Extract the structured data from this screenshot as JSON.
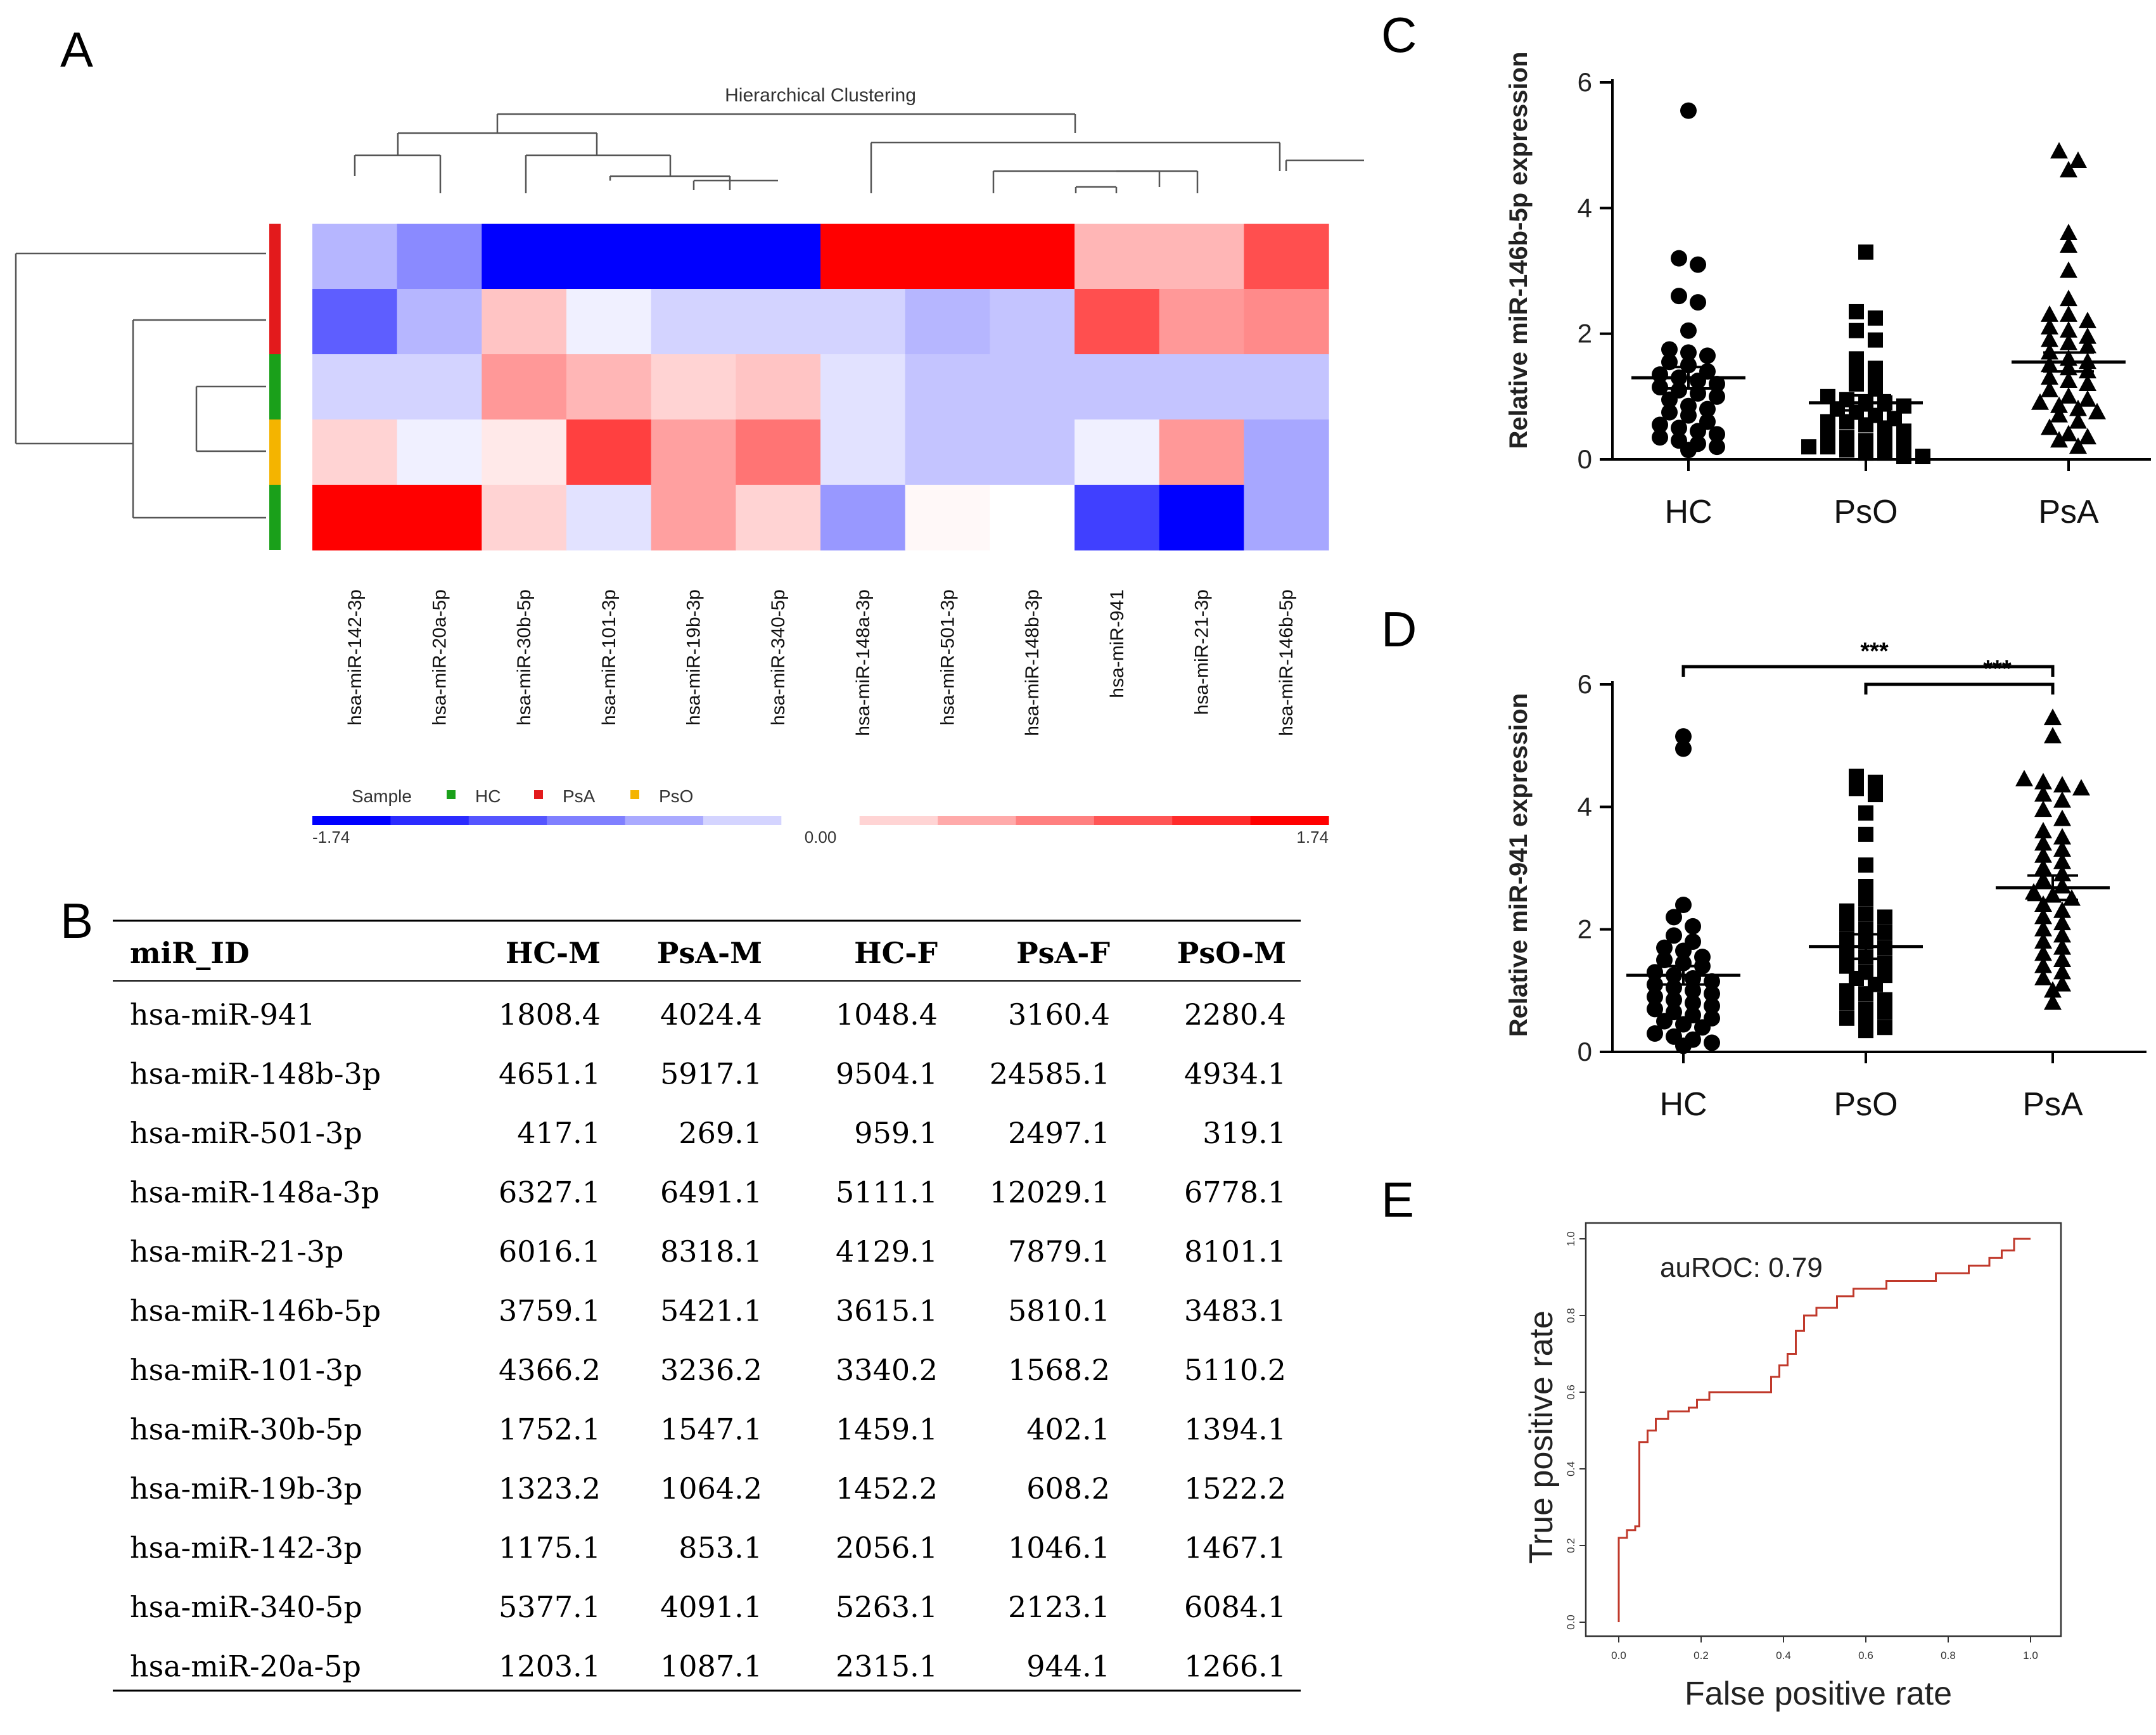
{
  "panel_labels": {
    "a": "A",
    "b": "B",
    "c": "C",
    "d": "D",
    "e": "E"
  },
  "colors": {
    "psa": "#e31a1c",
    "hc": "#1aa01a",
    "pso": "#f4b400",
    "heat_low": "#0000ff",
    "heat_mid": "#ffffff",
    "heat_high": "#ff0000",
    "roc": "#c0392b"
  },
  "chart_data": [
    {
      "type": "heatmap",
      "title": "Hierarchical Clustering",
      "columns": [
        "hsa-miR-142-3p",
        "hsa-miR-20a-5p",
        "hsa-miR-30b-5p",
        "hsa-miR-101-3p",
        "hsa-miR-19b-3p",
        "hsa-miR-340-5p",
        "hsa-miR-148a-3p",
        "hsa-miR-501-3p",
        "hsa-miR-148b-3p",
        "hsa-miR-941",
        "hsa-miR-21-3p",
        "hsa-miR-146b-5p"
      ],
      "row_groups": [
        "PsA",
        "PsA",
        "HC",
        "PsO",
        "HC"
      ],
      "values": [
        [
          -0.5,
          -0.8,
          -1.74,
          -1.74,
          -1.74,
          -1.74,
          1.74,
          1.74,
          1.74,
          0.5,
          0.5,
          1.2
        ],
        [
          -1.1,
          -0.5,
          0.4,
          -0.1,
          -0.3,
          -0.3,
          -0.3,
          -0.5,
          -0.4,
          1.2,
          0.7,
          0.8
        ],
        [
          -0.3,
          -0.3,
          0.7,
          0.5,
          0.3,
          0.4,
          -0.2,
          -0.4,
          -0.4,
          -0.4,
          -0.4,
          -0.4
        ],
        [
          0.3,
          -0.1,
          0.15,
          1.3,
          0.65,
          0.95,
          -0.2,
          -0.4,
          -0.4,
          -0.1,
          0.7,
          -0.6
        ],
        [
          1.74,
          1.74,
          0.3,
          -0.2,
          0.65,
          0.3,
          -0.7,
          0.05,
          0.0,
          -1.3,
          -1.74,
          -0.6
        ]
      ],
      "legend": {
        "label": "Sample",
        "entries": [
          "HC",
          "PsA",
          "PsO"
        ]
      },
      "colorbar": {
        "min": -1.74,
        "mid": 0.0,
        "max": 1.74,
        "min_label": "-1.74",
        "mid_label": "0.00",
        "max_label": "1.74"
      }
    },
    {
      "type": "table",
      "headers": [
        "miR_ID",
        "HC-M",
        "PsA-M",
        "HC-F",
        "PsA-F",
        "PsO-M"
      ],
      "rows": [
        [
          "hsa-miR-941",
          "1808.4",
          "4024.4",
          "1048.4",
          "3160.4",
          "2280.4"
        ],
        [
          "hsa-miR-148b-3p",
          "4651.1",
          "5917.1",
          "9504.1",
          "24585.1",
          "4934.1"
        ],
        [
          "hsa-miR-501-3p",
          "417.1",
          "269.1",
          "959.1",
          "2497.1",
          "319.1"
        ],
        [
          "hsa-miR-148a-3p",
          "6327.1",
          "6491.1",
          "5111.1",
          "12029.1",
          "6778.1"
        ],
        [
          "hsa-miR-21-3p",
          "6016.1",
          "8318.1",
          "4129.1",
          "7879.1",
          "8101.1"
        ],
        [
          "hsa-miR-146b-5p",
          "3759.1",
          "5421.1",
          "3615.1",
          "5810.1",
          "3483.1"
        ],
        [
          "hsa-miR-101-3p",
          "4366.2",
          "3236.2",
          "3340.2",
          "1568.2",
          "5110.2"
        ],
        [
          "hsa-miR-30b-5p",
          "1752.1",
          "1547.1",
          "1459.1",
          "402.1",
          "1394.1"
        ],
        [
          "hsa-miR-19b-3p",
          "1323.2",
          "1064.2",
          "1452.2",
          "608.2",
          "1522.2"
        ],
        [
          "hsa-miR-142-3p",
          "1175.1",
          "853.1",
          "2056.1",
          "1046.1",
          "1467.1"
        ],
        [
          "hsa-miR-340-5p",
          "5377.1",
          "4091.1",
          "5263.1",
          "2123.1",
          "6084.1"
        ],
        [
          "hsa-miR-20a-5p",
          "1203.1",
          "1087.1",
          "2315.1",
          "944.1",
          "1266.1"
        ]
      ]
    },
    {
      "type": "scatter",
      "ylabel": "Relative miR-146b-5p expression",
      "ylim": [
        0,
        6
      ],
      "yticks": [
        "0",
        "2",
        "4",
        "6"
      ],
      "groups": [
        {
          "name": "HC",
          "marker": "circle",
          "mean": 1.3,
          "sem": 0.17,
          "values": [
            5.55,
            3.2,
            3.1,
            2.6,
            2.5,
            2.05,
            1.75,
            1.7,
            1.65,
            1.55,
            1.5,
            1.4,
            1.35,
            1.3,
            1.25,
            1.2,
            1.15,
            1.1,
            1.05,
            1.0,
            0.95,
            0.85,
            0.8,
            0.75,
            0.7,
            0.6,
            0.55,
            0.5,
            0.45,
            0.4,
            0.35,
            0.3,
            0.25,
            0.2,
            0.15
          ]
        },
        {
          "name": "PsO",
          "marker": "square",
          "mean": 0.9,
          "sem": 0.12,
          "values": [
            3.3,
            2.35,
            2.25,
            2.05,
            1.9,
            1.6,
            1.45,
            1.4,
            1.3,
            1.2,
            1.15,
            1.0,
            0.95,
            0.9,
            0.9,
            0.85,
            0.8,
            0.75,
            0.7,
            0.65,
            0.6,
            0.6,
            0.55,
            0.5,
            0.45,
            0.4,
            0.35,
            0.3,
            0.3,
            0.25,
            0.2,
            0.2,
            0.15,
            0.1,
            0.1,
            0.05,
            0.05
          ]
        },
        {
          "name": "PsA",
          "marker": "triangle",
          "mean": 1.55,
          "sem": 0.15,
          "values": [
            4.9,
            4.75,
            4.6,
            3.6,
            3.4,
            3.0,
            2.55,
            2.3,
            2.3,
            2.2,
            2.1,
            2.05,
            1.95,
            1.9,
            1.85,
            1.8,
            1.7,
            1.6,
            1.55,
            1.5,
            1.45,
            1.4,
            1.3,
            1.25,
            1.2,
            1.1,
            1.0,
            0.95,
            0.9,
            0.85,
            0.8,
            0.75,
            0.7,
            0.6,
            0.5,
            0.4,
            0.35,
            0.3,
            0.2
          ]
        }
      ]
    },
    {
      "type": "scatter",
      "ylabel": "Relative miR-941 expression",
      "ylim": [
        0,
        6
      ],
      "yticks": [
        "0",
        "2",
        "4",
        "6"
      ],
      "significance": [
        {
          "from": "HC",
          "to": "PsA",
          "label": "***"
        },
        {
          "from": "PsO",
          "to": "PsA",
          "label": "***"
        }
      ],
      "groups": [
        {
          "name": "HC",
          "marker": "circle",
          "mean": 1.25,
          "sem": 0.15,
          "values": [
            5.15,
            4.95,
            2.4,
            2.2,
            2.05,
            1.9,
            1.8,
            1.7,
            1.65,
            1.55,
            1.5,
            1.45,
            1.4,
            1.3,
            1.25,
            1.2,
            1.15,
            1.1,
            1.05,
            1.0,
            0.95,
            0.9,
            0.85,
            0.8,
            0.75,
            0.7,
            0.65,
            0.6,
            0.55,
            0.5,
            0.45,
            0.4,
            0.3,
            0.25,
            0.2,
            0.15,
            0.1
          ]
        },
        {
          "name": "PsO",
          "marker": "square",
          "mean": 1.72,
          "sem": 0.2,
          "values": [
            4.5,
            4.4,
            4.3,
            4.2,
            3.9,
            3.55,
            3.05,
            2.7,
            2.5,
            2.3,
            2.25,
            2.2,
            2.1,
            2.0,
            1.95,
            1.85,
            1.8,
            1.7,
            1.6,
            1.55,
            1.45,
            1.4,
            1.3,
            1.25,
            1.2,
            1.1,
            1.0,
            0.95,
            0.85,
            0.8,
            0.7,
            0.65,
            0.55,
            0.5,
            0.4,
            0.35
          ]
        },
        {
          "name": "PsA",
          "marker": "triangle",
          "mean": 2.68,
          "sem": 0.2,
          "values": [
            5.45,
            5.15,
            4.45,
            4.4,
            4.35,
            4.3,
            4.2,
            4.1,
            3.95,
            3.8,
            3.6,
            3.5,
            3.4,
            3.3,
            3.2,
            3.1,
            3.0,
            2.9,
            2.8,
            2.7,
            2.6,
            2.55,
            2.5,
            2.4,
            2.3,
            2.2,
            2.1,
            2.0,
            1.9,
            1.8,
            1.7,
            1.6,
            1.5,
            1.4,
            1.3,
            1.2,
            1.1,
            1.0,
            0.8
          ]
        }
      ]
    },
    {
      "type": "line",
      "xlabel": "False positive rate",
      "ylabel": "True positive rate",
      "annotation": "auROC: 0.79",
      "xlim": [
        0,
        1
      ],
      "ylim": [
        0,
        1
      ],
      "ticks": [
        "0.0",
        "0.2",
        "0.4",
        "0.6",
        "0.8",
        "1.0"
      ],
      "x": [
        0,
        0,
        0.02,
        0.02,
        0.04,
        0.04,
        0.05,
        0.05,
        0.07,
        0.07,
        0.09,
        0.09,
        0.12,
        0.12,
        0.17,
        0.17,
        0.19,
        0.19,
        0.22,
        0.22,
        0.37,
        0.37,
        0.39,
        0.39,
        0.41,
        0.41,
        0.43,
        0.43,
        0.45,
        0.45,
        0.48,
        0.48,
        0.53,
        0.53,
        0.57,
        0.57,
        0.65,
        0.65,
        0.77,
        0.77,
        0.85,
        0.85,
        0.9,
        0.9,
        0.93,
        0.93,
        0.96,
        0.96,
        1.0
      ],
      "y": [
        0,
        0.22,
        0.22,
        0.24,
        0.24,
        0.25,
        0.25,
        0.47,
        0.47,
        0.5,
        0.5,
        0.53,
        0.53,
        0.55,
        0.55,
        0.56,
        0.56,
        0.58,
        0.58,
        0.6,
        0.6,
        0.64,
        0.64,
        0.67,
        0.67,
        0.7,
        0.7,
        0.76,
        0.76,
        0.8,
        0.8,
        0.82,
        0.82,
        0.85,
        0.85,
        0.87,
        0.87,
        0.89,
        0.89,
        0.91,
        0.91,
        0.93,
        0.93,
        0.95,
        0.95,
        0.97,
        0.97,
        1.0,
        1.0
      ]
    }
  ],
  "sample_legend": {
    "hc": "HC",
    "psa": "PsA",
    "pso": "PsO"
  }
}
